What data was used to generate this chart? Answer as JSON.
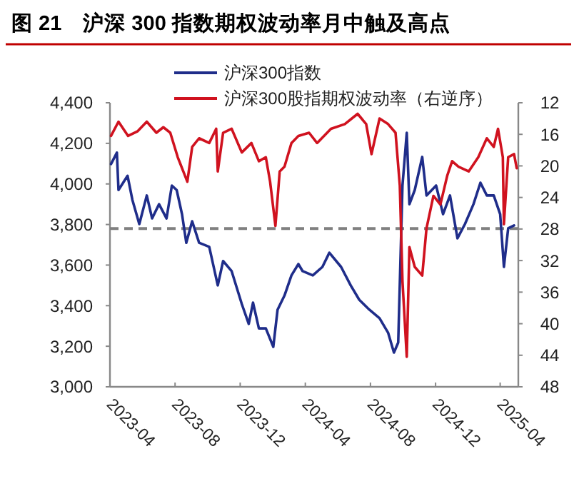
{
  "chart_data": {
    "type": "line",
    "title": "图 21　沪深 300 指数期权波动率月中触及高点",
    "xlim": [
      "2023-04-01",
      "2025-05-05"
    ],
    "xticks": [
      {
        "value": "2023-04-01",
        "label": "2023-04"
      },
      {
        "value": "2023-08-01",
        "label": "2023-08"
      },
      {
        "value": "2023-12-01",
        "label": "2023-12"
      },
      {
        "value": "2024-04-01",
        "label": "2024-04"
      },
      {
        "value": "2024-08-01",
        "label": "2024-08"
      },
      {
        "value": "2024-12-01",
        "label": "2024-12"
      },
      {
        "value": "2025-04-01",
        "label": "2025-04"
      }
    ],
    "ylim": [
      3000,
      4400
    ],
    "yticks": [
      {
        "value": 3000,
        "label": "3,000"
      },
      {
        "value": 3200,
        "label": "3,200"
      },
      {
        "value": 3400,
        "label": "3,400"
      },
      {
        "value": 3600,
        "label": "3,600"
      },
      {
        "value": 3800,
        "label": "3,800"
      },
      {
        "value": 4000,
        "label": "4,000"
      },
      {
        "value": 4200,
        "label": "4,200"
      },
      {
        "value": 4400,
        "label": "4,400"
      }
    ],
    "y2lim": [
      48,
      12
    ],
    "y2ticks": [
      12,
      16,
      20,
      24,
      28,
      32,
      36,
      40,
      44,
      48
    ],
    "grid": false,
    "legend": "top",
    "line_style": "solid",
    "marker": "none",
    "ref_lines": [
      {
        "axis": "y",
        "value": 3780,
        "color": "#808080",
        "line_style": "dashed"
      }
    ],
    "series": [
      {
        "name": "沪深300指数",
        "color": "#1f2d8a",
        "x": [
          "2023-04-03",
          "2023-04-14",
          "2023-04-17",
          "2023-05-04",
          "2023-05-13",
          "2023-05-26",
          "2023-06-09",
          "2023-06-19",
          "2023-07-02",
          "2023-07-16",
          "2023-07-26",
          "2023-08-04",
          "2023-08-14",
          "2023-08-22",
          "2023-09-02",
          "2023-09-15",
          "2023-10-04",
          "2023-10-20",
          "2023-10-30",
          "2023-11-15",
          "2023-12-04",
          "2023-12-17",
          "2023-12-25",
          "2024-01-05",
          "2024-01-18",
          "2024-02-01",
          "2024-02-09",
          "2024-02-22",
          "2024-03-06",
          "2024-03-19",
          "2024-03-27",
          "2024-04-15",
          "2024-05-03",
          "2024-05-16",
          "2024-06-07",
          "2024-06-25",
          "2024-07-11",
          "2024-07-30",
          "2024-08-18",
          "2024-09-03",
          "2024-09-14",
          "2024-09-22",
          "2024-09-30",
          "2024-10-08",
          "2024-10-13",
          "2024-10-23",
          "2024-11-06",
          "2024-11-14",
          "2024-12-02",
          "2024-12-15",
          "2024-12-28",
          "2025-01-11",
          "2025-01-25",
          "2025-02-10",
          "2025-02-23",
          "2025-03-07",
          "2025-03-20",
          "2025-04-01",
          "2025-04-08",
          "2025-04-16",
          "2025-04-27"
        ],
        "values": [
          4098,
          4154,
          3970,
          4040,
          3922,
          3802,
          3943,
          3830,
          3900,
          3830,
          3992,
          3970,
          3851,
          3710,
          3816,
          3710,
          3690,
          3500,
          3620,
          3570,
          3408,
          3310,
          3415,
          3288,
          3288,
          3197,
          3380,
          3450,
          3549,
          3605,
          3570,
          3549,
          3591,
          3661,
          3591,
          3500,
          3429,
          3380,
          3338,
          3267,
          3169,
          3218,
          3992,
          4252,
          3900,
          3970,
          4133,
          3943,
          3992,
          3851,
          3943,
          3732,
          3802,
          3900,
          4006,
          3943,
          3943,
          3851,
          3591,
          3781,
          3795
        ]
      },
      {
        "name": "沪深300股指期权波动率（右逆序）",
        "color": "#d0121f",
        "axis": "y2",
        "x": [
          "2023-04-03",
          "2023-04-17",
          "2023-05-05",
          "2023-05-23",
          "2023-06-09",
          "2023-06-27",
          "2023-07-10",
          "2023-07-23",
          "2023-08-06",
          "2023-08-24",
          "2023-09-02",
          "2023-09-15",
          "2023-10-04",
          "2023-10-17",
          "2023-10-20",
          "2023-10-30",
          "2023-11-15",
          "2023-12-04",
          "2023-12-22",
          "2024-01-05",
          "2024-01-18",
          "2024-01-26",
          "2024-02-05",
          "2024-02-13",
          "2024-02-22",
          "2024-03-06",
          "2024-03-19",
          "2024-04-08",
          "2024-04-23",
          "2024-05-19",
          "2024-06-14",
          "2024-07-08",
          "2024-07-24",
          "2024-08-03",
          "2024-08-18",
          "2024-09-03",
          "2024-09-17",
          "2024-09-25",
          "2024-09-30",
          "2024-10-08",
          "2024-10-13",
          "2024-10-23",
          "2024-11-06",
          "2024-11-14",
          "2024-11-27",
          "2024-12-10",
          "2024-12-23",
          "2025-01-01",
          "2025-01-13",
          "2025-02-01",
          "2025-02-19",
          "2025-03-07",
          "2025-03-20",
          "2025-03-28",
          "2025-04-06",
          "2025-04-08",
          "2025-04-16",
          "2025-04-27",
          "2025-05-02"
        ],
        "values": [
          16.2,
          14.4,
          16.2,
          15.6,
          14.4,
          15.8,
          15.1,
          15.8,
          18.9,
          22,
          17.6,
          16.5,
          17.1,
          15.3,
          20.7,
          15.8,
          15.3,
          18.3,
          17.1,
          19.4,
          18.9,
          22,
          27.6,
          20.7,
          20.1,
          17.1,
          16.2,
          15.8,
          17.1,
          15.3,
          14.7,
          13.4,
          14.7,
          18.5,
          14,
          14.7,
          15.8,
          22.5,
          34.6,
          44.2,
          30.3,
          32.8,
          33.9,
          27.9,
          23.8,
          24.9,
          21.2,
          19.4,
          20.1,
          20.7,
          18.9,
          16.5,
          17.6,
          15.3,
          18.9,
          27.4,
          18.9,
          18.5,
          20.3
        ]
      }
    ]
  }
}
